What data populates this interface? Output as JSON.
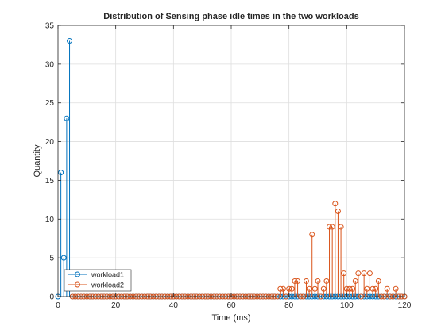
{
  "chart_data": {
    "type": "stem",
    "title": "Distribution of Sensing phase idle times in the two workloads",
    "xlabel": "Time (ms)",
    "ylabel": "Quantity",
    "xlim": [
      0,
      120
    ],
    "ylim": [
      0,
      35
    ],
    "xticks": [
      0,
      20,
      40,
      60,
      80,
      100,
      120
    ],
    "yticks": [
      0,
      5,
      10,
      15,
      20,
      25,
      30,
      35
    ],
    "grid": true,
    "legend_position": "bottom-left",
    "series": [
      {
        "name": "workload1",
        "color": "#0072BD",
        "points": [
          [
            0,
            0
          ],
          [
            1,
            16
          ],
          [
            2,
            5
          ],
          [
            3,
            23
          ],
          [
            4,
            33
          ],
          [
            5,
            0
          ],
          [
            6,
            0
          ],
          [
            7,
            0
          ],
          [
            8,
            0
          ],
          [
            9,
            0
          ],
          [
            10,
            0
          ],
          [
            11,
            0
          ],
          [
            12,
            0
          ],
          [
            13,
            0
          ],
          [
            14,
            0
          ],
          [
            15,
            0
          ],
          [
            16,
            0
          ],
          [
            17,
            0
          ],
          [
            18,
            0
          ],
          [
            19,
            0
          ],
          [
            20,
            0
          ],
          [
            21,
            0
          ],
          [
            22,
            0
          ],
          [
            23,
            0
          ],
          [
            24,
            0
          ],
          [
            25,
            0
          ],
          [
            26,
            0
          ],
          [
            27,
            0
          ],
          [
            28,
            0
          ],
          [
            29,
            0
          ],
          [
            30,
            0
          ],
          [
            31,
            0
          ],
          [
            32,
            0
          ],
          [
            33,
            0
          ],
          [
            34,
            0
          ],
          [
            35,
            0
          ],
          [
            36,
            0
          ],
          [
            37,
            0
          ],
          [
            38,
            0
          ],
          [
            39,
            0
          ],
          [
            40,
            0
          ],
          [
            41,
            0
          ],
          [
            42,
            0
          ],
          [
            43,
            0
          ],
          [
            44,
            0
          ],
          [
            45,
            0
          ],
          [
            46,
            0
          ],
          [
            47,
            0
          ],
          [
            48,
            0
          ],
          [
            49,
            0
          ],
          [
            50,
            0
          ],
          [
            51,
            0
          ],
          [
            52,
            0
          ],
          [
            53,
            0
          ],
          [
            54,
            0
          ],
          [
            55,
            0
          ],
          [
            56,
            0
          ],
          [
            57,
            0
          ],
          [
            58,
            0
          ],
          [
            59,
            0
          ],
          [
            60,
            0
          ],
          [
            61,
            0
          ],
          [
            62,
            0
          ],
          [
            63,
            0
          ],
          [
            64,
            0
          ],
          [
            65,
            0
          ],
          [
            66,
            0
          ],
          [
            67,
            0
          ],
          [
            68,
            0
          ],
          [
            69,
            0
          ],
          [
            70,
            0
          ],
          [
            71,
            0
          ],
          [
            72,
            0
          ],
          [
            73,
            0
          ],
          [
            74,
            0
          ],
          [
            75,
            0
          ],
          [
            76,
            0
          ],
          [
            77,
            0
          ],
          [
            78,
            0
          ],
          [
            79,
            0
          ],
          [
            80,
            0
          ],
          [
            81,
            0
          ],
          [
            82,
            0
          ],
          [
            83,
            0
          ],
          [
            84,
            0
          ],
          [
            85,
            0
          ],
          [
            86,
            0
          ],
          [
            87,
            0
          ],
          [
            88,
            0
          ],
          [
            89,
            0
          ],
          [
            90,
            0
          ],
          [
            91,
            0
          ],
          [
            92,
            0
          ],
          [
            93,
            0
          ],
          [
            94,
            0
          ],
          [
            95,
            0
          ],
          [
            96,
            0
          ],
          [
            97,
            0
          ],
          [
            98,
            0
          ],
          [
            99,
            0
          ],
          [
            100,
            0
          ],
          [
            101,
            0
          ],
          [
            102,
            0
          ],
          [
            103,
            0
          ],
          [
            104,
            0
          ],
          [
            105,
            0
          ],
          [
            106,
            0
          ],
          [
            107,
            0
          ],
          [
            108,
            0
          ],
          [
            109,
            0
          ],
          [
            110,
            0
          ],
          [
            111,
            0
          ],
          [
            112,
            0
          ],
          [
            113,
            0
          ],
          [
            114,
            0
          ],
          [
            115,
            0
          ],
          [
            116,
            0
          ],
          [
            117,
            0
          ],
          [
            118,
            0
          ],
          [
            119,
            0
          ],
          [
            120,
            0
          ]
        ]
      },
      {
        "name": "workload2",
        "color": "#D95319",
        "points": [
          [
            5,
            0
          ],
          [
            6,
            0
          ],
          [
            7,
            0
          ],
          [
            8,
            0
          ],
          [
            9,
            0
          ],
          [
            10,
            0
          ],
          [
            11,
            0
          ],
          [
            12,
            0
          ],
          [
            13,
            0
          ],
          [
            14,
            0
          ],
          [
            15,
            0
          ],
          [
            16,
            0
          ],
          [
            17,
            0
          ],
          [
            18,
            0
          ],
          [
            19,
            0
          ],
          [
            20,
            0
          ],
          [
            21,
            0
          ],
          [
            22,
            0
          ],
          [
            23,
            0
          ],
          [
            24,
            0
          ],
          [
            25,
            0
          ],
          [
            26,
            0
          ],
          [
            27,
            0
          ],
          [
            28,
            0
          ],
          [
            29,
            0
          ],
          [
            30,
            0
          ],
          [
            31,
            0
          ],
          [
            32,
            0
          ],
          [
            33,
            0
          ],
          [
            34,
            0
          ],
          [
            35,
            0
          ],
          [
            36,
            0
          ],
          [
            37,
            0
          ],
          [
            38,
            0
          ],
          [
            39,
            0
          ],
          [
            40,
            0
          ],
          [
            41,
            0
          ],
          [
            42,
            0
          ],
          [
            43,
            0
          ],
          [
            44,
            0
          ],
          [
            45,
            0
          ],
          [
            46,
            0
          ],
          [
            47,
            0
          ],
          [
            48,
            0
          ],
          [
            49,
            0
          ],
          [
            50,
            0
          ],
          [
            51,
            0
          ],
          [
            52,
            0
          ],
          [
            53,
            0
          ],
          [
            54,
            0
          ],
          [
            55,
            0
          ],
          [
            56,
            0
          ],
          [
            57,
            0
          ],
          [
            58,
            0
          ],
          [
            59,
            0
          ],
          [
            60,
            0
          ],
          [
            61,
            0
          ],
          [
            62,
            0
          ],
          [
            63,
            0
          ],
          [
            64,
            0
          ],
          [
            65,
            0
          ],
          [
            66,
            0
          ],
          [
            67,
            0
          ],
          [
            68,
            0
          ],
          [
            69,
            0
          ],
          [
            70,
            0
          ],
          [
            71,
            0
          ],
          [
            72,
            0
          ],
          [
            73,
            0
          ],
          [
            74,
            0
          ],
          [
            75,
            0
          ],
          [
            76,
            0
          ],
          [
            77,
            1
          ],
          [
            78,
            1
          ],
          [
            79,
            0
          ],
          [
            80,
            1
          ],
          [
            81,
            1
          ],
          [
            82,
            2
          ],
          [
            83,
            2
          ],
          [
            84,
            0
          ],
          [
            85,
            0
          ],
          [
            86,
            2
          ],
          [
            87,
            1
          ],
          [
            88,
            8
          ],
          [
            89,
            1
          ],
          [
            90,
            2
          ],
          [
            91,
            0
          ],
          [
            92,
            1
          ],
          [
            93,
            2
          ],
          [
            94,
            9
          ],
          [
            95,
            9
          ],
          [
            96,
            12
          ],
          [
            97,
            11
          ],
          [
            98,
            9
          ],
          [
            99,
            3
          ],
          [
            100,
            1
          ],
          [
            101,
            1
          ],
          [
            102,
            1
          ],
          [
            103,
            2
          ],
          [
            104,
            3
          ],
          [
            105,
            0
          ],
          [
            106,
            3
          ],
          [
            107,
            1
          ],
          [
            108,
            3
          ],
          [
            109,
            1
          ],
          [
            110,
            1
          ],
          [
            111,
            2
          ],
          [
            112,
            0
          ],
          [
            113,
            0
          ],
          [
            114,
            1
          ],
          [
            115,
            0
          ],
          [
            116,
            0
          ],
          [
            117,
            1
          ],
          [
            118,
            0
          ],
          [
            119,
            0
          ],
          [
            120,
            0
          ]
        ]
      }
    ]
  }
}
